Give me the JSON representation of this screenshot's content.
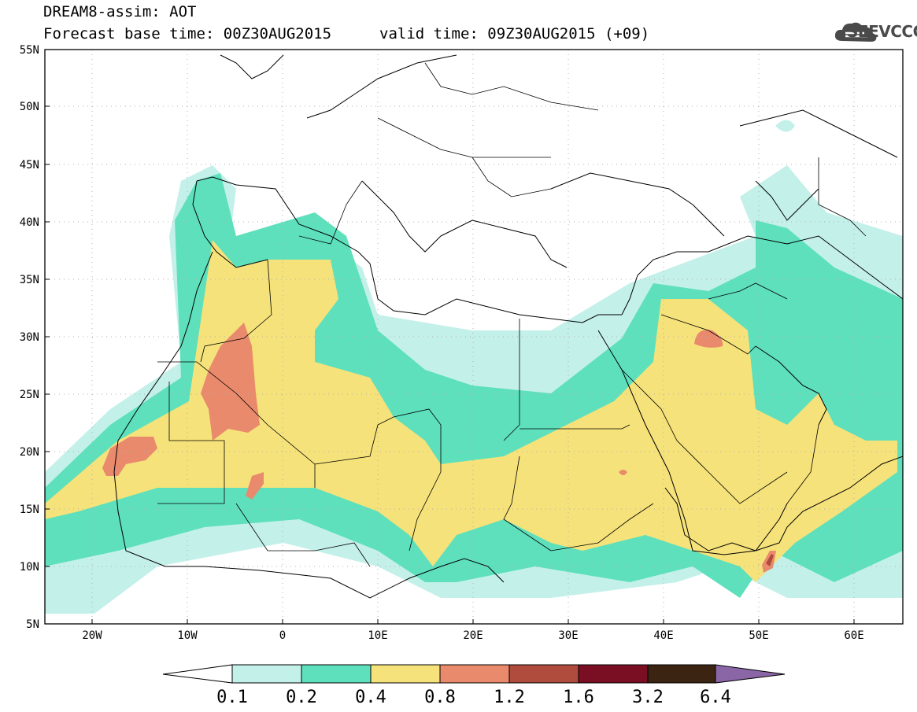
{
  "header": {
    "line1": "DREAM8-assim: AOT",
    "line2_left": "Forecast base time: 00Z30AUG2015",
    "line2_right": "valid time: 09Z30AUG2015 (+09)",
    "logo_text": "SEEVCCC"
  },
  "map": {
    "lon_range": [
      -25,
      65
    ],
    "lat_range": [
      5,
      55
    ],
    "lat_ticks": [
      "55N",
      "50N",
      "45N",
      "40N",
      "35N",
      "30N",
      "25N",
      "20N",
      "15N",
      "10N",
      "5N"
    ],
    "lon_ticks": [
      "20W",
      "10W",
      "0",
      "10E",
      "20E",
      "30E",
      "40E",
      "50E",
      "60E"
    ]
  },
  "colorbar": {
    "levels": [
      "0.1",
      "0.2",
      "0.4",
      "0.8",
      "1.2",
      "1.6",
      "3.2",
      "6.4"
    ],
    "colors": [
      "#c4f0ea",
      "#5ee0bc",
      "#f6e27a",
      "#e98a6c",
      "#b04c3d",
      "#7a0f24",
      "#3b2412",
      "#8a66a6"
    ]
  }
}
